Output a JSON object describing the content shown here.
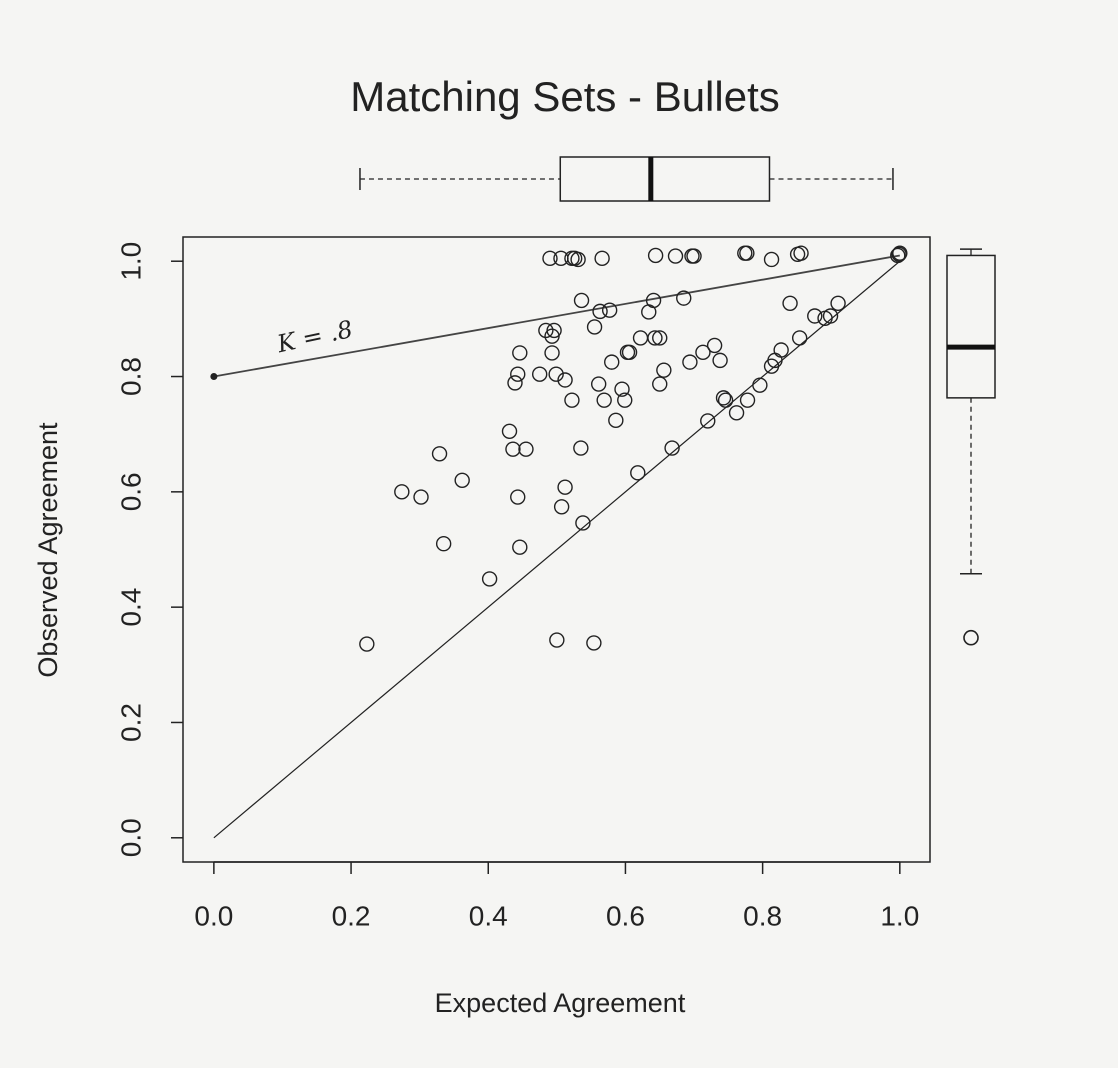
{
  "chart_data": {
    "type": "scatter",
    "title": "Matching Sets - Bullets",
    "xlabel": "Expected Agreement",
    "ylabel": "Observed Agreement",
    "annotation": "K = .8",
    "xlim": [
      -0.045,
      1.044
    ],
    "ylim": [
      -0.042,
      1.042
    ],
    "xticks": [
      {
        "value": 0,
        "label": "0.0"
      },
      0.2,
      0.4,
      0.6,
      0.8,
      {
        "value": 1,
        "label": "1.0"
      }
    ],
    "yticks": [
      {
        "value": 0,
        "label": "0.0"
      },
      0.2,
      0.4,
      0.6,
      0.8,
      {
        "value": 1,
        "label": "1.0"
      }
    ],
    "color": "#222222",
    "x": [
      0.223,
      0.274,
      0.302,
      0.329,
      0.335,
      0.362,
      0.402,
      0.431,
      0.436,
      0.439,
      0.443,
      0.446,
      0.443,
      0.446,
      0.455,
      0.475,
      0.484,
      0.49,
      0.493,
      0.493,
      0.496,
      0.499,
      0.5,
      0.506,
      0.507,
      0.512,
      0.512,
      0.522,
      0.522,
      0.526,
      0.531,
      0.535,
      0.538,
      0.536,
      0.554,
      0.555,
      0.561,
      0.563,
      0.566,
      0.569,
      0.577,
      0.58,
      0.586,
      0.595,
      0.599,
      0.603,
      0.606,
      0.618,
      0.622,
      0.634,
      0.641,
      0.643,
      0.644,
      0.65,
      0.65,
      0.656,
      0.668,
      0.673,
      0.685,
      0.694,
      0.697,
      0.7,
      0.713,
      0.72,
      0.73,
      0.738,
      0.743,
      0.746,
      0.762,
      0.774,
      0.777,
      0.778,
      0.796,
      0.813,
      0.813,
      0.818,
      0.827,
      0.84,
      0.851,
      0.856,
      0.854,
      0.876,
      0.891,
      0.899,
      0.91,
      0.999,
      0.997,
      1.0
    ],
    "values": [
      0.336,
      0.6,
      0.591,
      0.666,
      0.51,
      0.62,
      0.449,
      0.705,
      0.674,
      0.789,
      0.804,
      0.841,
      0.591,
      0.504,
      0.674,
      0.804,
      0.88,
      1.005,
      0.87,
      0.841,
      0.88,
      0.804,
      0.343,
      1.005,
      0.574,
      0.608,
      0.794,
      1.005,
      0.759,
      1.005,
      1.003,
      0.676,
      0.546,
      0.932,
      0.338,
      0.886,
      0.787,
      0.913,
      1.005,
      0.759,
      0.915,
      0.825,
      0.724,
      0.778,
      0.759,
      0.842,
      0.842,
      0.633,
      0.867,
      0.912,
      0.932,
      0.867,
      1.01,
      0.867,
      0.787,
      0.811,
      0.676,
      1.009,
      0.936,
      0.825,
      1.009,
      1.009,
      0.842,
      0.723,
      0.854,
      0.828,
      0.763,
      0.759,
      0.737,
      1.014,
      1.014,
      0.759,
      0.785,
      1.003,
      0.818,
      0.828,
      0.846,
      0.927,
      1.012,
      1.014,
      0.867,
      0.905,
      0.901,
      0.905,
      0.927,
      1.012,
      1.01,
      1.014
    ],
    "lines": [
      {
        "x": [
          0,
          1
        ],
        "values": [
          0,
          1
        ]
      },
      {
        "x": [
          0,
          1
        ],
        "values": [
          0.8,
          1.01
        ]
      }
    ],
    "x_box": {
      "min": 0.213,
      "q1": 0.505,
      "median": 0.637,
      "q3": 0.81,
      "max": 0.99
    },
    "y_box": {
      "min": 0.458,
      "q1": 0.763,
      "median": 0.851,
      "q3": 1.01,
      "max": 1.021,
      "outliers": [
        0.347
      ]
    }
  }
}
